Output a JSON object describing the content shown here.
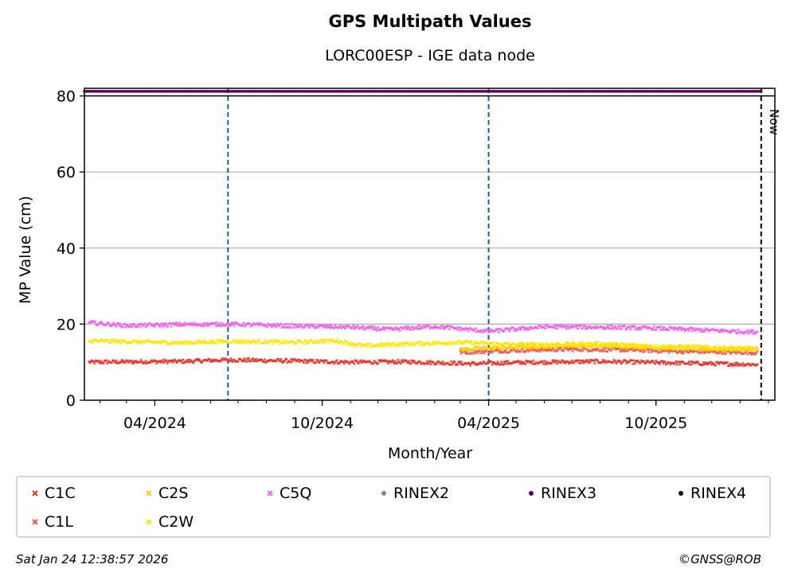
{
  "title": "GPS Multipath Values",
  "subtitle": "LORC00ESP - IGE data node",
  "footer": {
    "timestamp": "Sat Jan 24 12:38:57 2026",
    "credit": "©GNSS@ROB"
  },
  "chart_data": {
    "type": "scatter",
    "xlabel": "Month/Year",
    "ylabel": "MP Value (cm)",
    "x_range": [
      "2024-01-15",
      "2026-02-08"
    ],
    "ylim": [
      0,
      82
    ],
    "y_ticks": [
      0,
      20,
      40,
      60,
      80
    ],
    "x_ticks": [
      {
        "date": "2024-04-01",
        "label": "04/2024"
      },
      {
        "date": "2024-10-01",
        "label": "10/2024"
      },
      {
        "date": "2025-04-01",
        "label": "04/2025"
      },
      {
        "date": "2025-10-01",
        "label": "10/2025"
      }
    ],
    "grid": "horizontal",
    "legend_placement": "below",
    "now_marker": {
      "date": "2026-01-24",
      "label": "Now"
    },
    "vertical_markers": [
      {
        "date": "2024-06-20",
        "color": "#1f5fa6"
      },
      {
        "date": "2025-04-01",
        "color": "#1f5fa6"
      }
    ],
    "reference_line": {
      "y": 80,
      "color": "#000000"
    },
    "series": [
      {
        "name": "C1C",
        "marker": "x",
        "color": "#e8332a",
        "points": [
          [
            "2024-01-20",
            10.0
          ],
          [
            "2024-03-01",
            10.1
          ],
          [
            "2024-05-01",
            10.2
          ],
          [
            "2024-06-20",
            10.6
          ],
          [
            "2024-09-01",
            10.3
          ],
          [
            "2024-11-01",
            10.0
          ],
          [
            "2025-01-01",
            10.1
          ],
          [
            "2025-03-15",
            9.6
          ],
          [
            "2025-05-01",
            9.9
          ],
          [
            "2025-08-01",
            10.2
          ],
          [
            "2025-10-01",
            9.9
          ],
          [
            "2026-01-20",
            9.4
          ]
        ]
      },
      {
        "name": "C1L",
        "marker": "x",
        "color": "#f0574a",
        "points": [
          [
            "2025-03-01",
            12.6
          ],
          [
            "2025-05-01",
            13.1
          ],
          [
            "2025-07-01",
            13.4
          ],
          [
            "2025-09-01",
            13.2
          ],
          [
            "2025-11-01",
            12.8
          ],
          [
            "2026-01-20",
            12.5
          ]
        ]
      },
      {
        "name": "C2S",
        "marker": "x",
        "color": "#ffcc00",
        "points": [
          [
            "2025-03-01",
            13.4
          ],
          [
            "2025-05-01",
            13.9
          ],
          [
            "2025-07-01",
            14.4
          ],
          [
            "2025-09-01",
            14.2
          ],
          [
            "2025-11-01",
            13.6
          ],
          [
            "2026-01-20",
            13.3
          ]
        ]
      },
      {
        "name": "C2W",
        "marker": "x",
        "color": "#ffe600",
        "points": [
          [
            "2024-01-20",
            15.6
          ],
          [
            "2024-03-01",
            15.4
          ],
          [
            "2024-05-01",
            15.1
          ],
          [
            "2024-06-20",
            15.5
          ],
          [
            "2024-09-01",
            15.2
          ],
          [
            "2024-10-15",
            15.7
          ],
          [
            "2024-11-15",
            14.3
          ],
          [
            "2025-01-01",
            14.8
          ],
          [
            "2025-03-01",
            15.2
          ],
          [
            "2025-05-01",
            14.6
          ],
          [
            "2025-08-01",
            14.8
          ],
          [
            "2025-10-01",
            14.2
          ],
          [
            "2026-01-20",
            13.6
          ]
        ]
      },
      {
        "name": "C5Q",
        "marker": "x",
        "color": "#f25ff2",
        "points": [
          [
            "2024-01-20",
            20.4
          ],
          [
            "2024-03-01",
            19.6
          ],
          [
            "2024-05-01",
            19.9
          ],
          [
            "2024-06-20",
            20.0
          ],
          [
            "2024-09-01",
            19.5
          ],
          [
            "2024-11-01",
            19.2
          ],
          [
            "2024-12-15",
            18.6
          ],
          [
            "2025-02-01",
            19.4
          ],
          [
            "2025-04-01",
            18.1
          ],
          [
            "2025-06-01",
            19.3
          ],
          [
            "2025-08-01",
            19.2
          ],
          [
            "2025-10-01",
            18.9
          ],
          [
            "2026-01-20",
            17.9
          ]
        ]
      },
      {
        "name": "RINEX2",
        "marker": "dot",
        "color": "#7d7dc0",
        "points": []
      },
      {
        "name": "RINEX3",
        "marker": "dot",
        "color": "#5c0059",
        "points": [
          [
            "2024-01-15",
            81.2
          ],
          [
            "2026-01-24",
            81.2
          ]
        ]
      },
      {
        "name": "RINEX4",
        "marker": "dot",
        "color": "#1a0024",
        "points": []
      }
    ]
  }
}
